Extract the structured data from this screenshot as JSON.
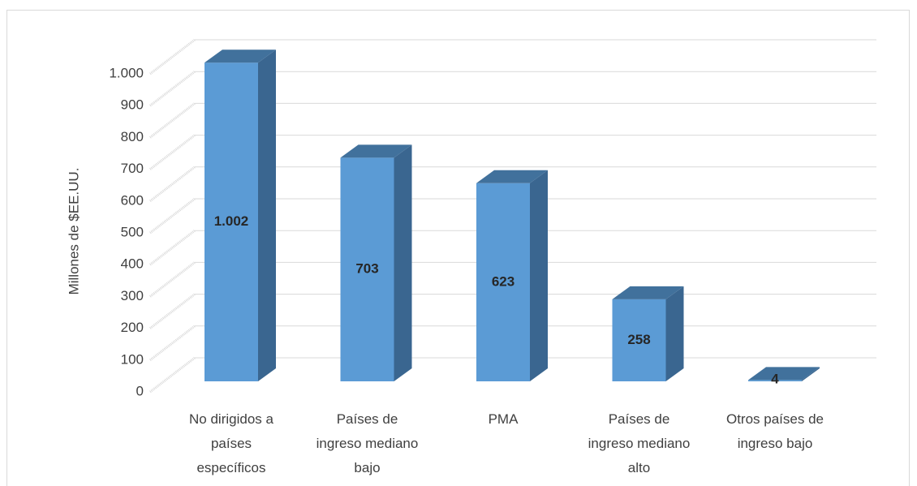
{
  "chart_data": {
    "type": "bar3d",
    "y_label": "Millones de $EE.UU.",
    "categories": [
      "No dirigidos a países específicos",
      "Países de ingreso mediano bajo",
      "PMA",
      "Países de ingreso mediano alto",
      "Otros países de ingreso bajo"
    ],
    "values": [
      1002,
      703,
      623,
      258,
      4
    ],
    "value_labels": [
      "1.002",
      "703",
      "623",
      "258",
      "4"
    ],
    "color": "#5b9bd5",
    "ylim": [
      0,
      1000
    ],
    "yticks": [
      0,
      100,
      200,
      300,
      400,
      500,
      600,
      700,
      800,
      900,
      {
        "value": 1000,
        "label": "1.000"
      }
    ],
    "grid": true
  }
}
